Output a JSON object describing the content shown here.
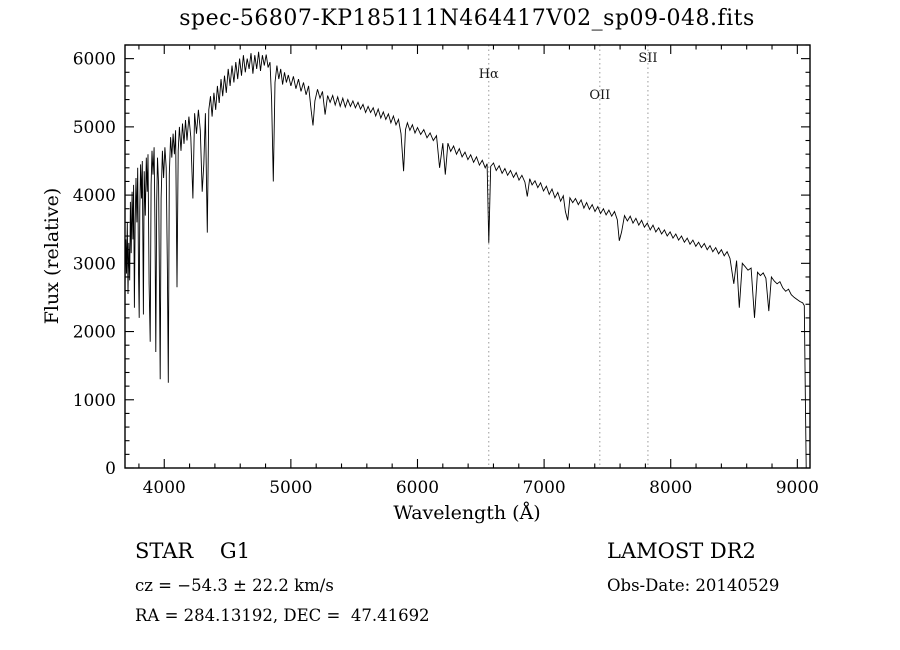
{
  "title": "spec-56807-KP185111N464417V02_sp09-048.fits",
  "annotations": {
    "object_class": "STAR    G1",
    "survey": "LAMOST DR2",
    "cz": "cz = −54.3 ± 22.2 km/s",
    "obs_date": "Obs-Date: 20140529",
    "coords": "RA = 284.13192, DEC =  47.41692"
  },
  "chart_data": {
    "type": "line",
    "title": "spec-56807-KP185111N464417V02_sp09-048.fits",
    "xlabel": "Wavelength (Å)",
    "ylabel": "Flux (relative)",
    "xlim": [
      3690,
      9100
    ],
    "ylim": [
      0,
      6200
    ],
    "xticks": [
      4000,
      5000,
      6000,
      7000,
      8000,
      9000
    ],
    "yticks": [
      0,
      1000,
      2000,
      3000,
      4000,
      5000,
      6000
    ],
    "x_minor_step": 200,
    "y_minor_step": 200,
    "grid": false,
    "legend": "none",
    "line_color": "#000000",
    "marker_line_color": "#9a9a9a",
    "marker_lines": [
      {
        "label": "Hα",
        "wavelength": 6563,
        "label_y": 78
      },
      {
        "label": "OII",
        "wavelength": 7440,
        "label_y": 99
      },
      {
        "label": "SII",
        "wavelength": 7820,
        "label_y": 62
      }
    ],
    "series": [
      {
        "name": "flux",
        "points": [
          [
            3690,
            2650
          ],
          [
            3696,
            3350
          ],
          [
            3702,
            2850
          ],
          [
            3708,
            3600
          ],
          [
            3714,
            2550
          ],
          [
            3720,
            3300
          ],
          [
            3727,
            2750
          ],
          [
            3733,
            3900
          ],
          [
            3739,
            3150
          ],
          [
            3746,
            4050
          ],
          [
            3752,
            3350
          ],
          [
            3758,
            4150
          ],
          [
            3764,
            2350
          ],
          [
            3770,
            3550
          ],
          [
            3777,
            4250
          ],
          [
            3784,
            3600
          ],
          [
            3790,
            4400
          ],
          [
            3797,
            2900
          ],
          [
            3802,
            2200
          ],
          [
            3807,
            3800
          ],
          [
            3813,
            4450
          ],
          [
            3820,
            3950
          ],
          [
            3827,
            4500
          ],
          [
            3835,
            2250
          ],
          [
            3842,
            4350
          ],
          [
            3850,
            3700
          ],
          [
            3858,
            4550
          ],
          [
            3865,
            4050
          ],
          [
            3872,
            4600
          ],
          [
            3880,
            2700
          ],
          [
            3889,
            1850
          ],
          [
            3896,
            4150
          ],
          [
            3903,
            4650
          ],
          [
            3911,
            4300
          ],
          [
            3920,
            4700
          ],
          [
            3927,
            3500
          ],
          [
            3933,
            1700
          ],
          [
            3940,
            3900
          ],
          [
            3947,
            4550
          ],
          [
            3955,
            4150
          ],
          [
            3962,
            2800
          ],
          [
            3968,
            1300
          ],
          [
            3975,
            3950
          ],
          [
            3985,
            4650
          ],
          [
            3995,
            4250
          ],
          [
            4005,
            4700
          ],
          [
            4015,
            4400
          ],
          [
            4025,
            2900
          ],
          [
            4032,
            1250
          ],
          [
            4040,
            4300
          ],
          [
            4050,
            4850
          ],
          [
            4060,
            4550
          ],
          [
            4070,
            4900
          ],
          [
            4080,
            4600
          ],
          [
            4090,
            4950
          ],
          [
            4101,
            2650
          ],
          [
            4110,
            4650
          ],
          [
            4120,
            5000
          ],
          [
            4132,
            4650
          ],
          [
            4144,
            5050
          ],
          [
            4156,
            4750
          ],
          [
            4168,
            5100
          ],
          [
            4180,
            4800
          ],
          [
            4195,
            5150
          ],
          [
            4210,
            4850
          ],
          [
            4226,
            3950
          ],
          [
            4240,
            5200
          ],
          [
            4255,
            4900
          ],
          [
            4270,
            5250
          ],
          [
            4285,
            4950
          ],
          [
            4300,
            4050
          ],
          [
            4312,
            4450
          ],
          [
            4325,
            5200
          ],
          [
            4340,
            3450
          ],
          [
            4352,
            5250
          ],
          [
            4365,
            5450
          ],
          [
            4378,
            5150
          ],
          [
            4392,
            5500
          ],
          [
            4406,
            5250
          ],
          [
            4420,
            5600
          ],
          [
            4434,
            5350
          ],
          [
            4448,
            5700
          ],
          [
            4462,
            5450
          ],
          [
            4476,
            5750
          ],
          [
            4490,
            5500
          ],
          [
            4505,
            5850
          ],
          [
            4520,
            5600
          ],
          [
            4535,
            5900
          ],
          [
            4550,
            5650
          ],
          [
            4565,
            5950
          ],
          [
            4580,
            5700
          ],
          [
            4595,
            6000
          ],
          [
            4610,
            5750
          ],
          [
            4625,
            6050
          ],
          [
            4640,
            5800
          ],
          [
            4655,
            6000
          ],
          [
            4670,
            5850
          ],
          [
            4685,
            6080
          ],
          [
            4700,
            5780
          ],
          [
            4715,
            6050
          ],
          [
            4730,
            5850
          ],
          [
            4745,
            6100
          ],
          [
            4760,
            5820
          ],
          [
            4775,
            6050
          ],
          [
            4790,
            5900
          ],
          [
            4805,
            6060
          ],
          [
            4820,
            5870
          ],
          [
            4835,
            5950
          ],
          [
            4848,
            5400
          ],
          [
            4861,
            4200
          ],
          [
            4875,
            5650
          ],
          [
            4890,
            5900
          ],
          [
            4905,
            5700
          ],
          [
            4920,
            5850
          ],
          [
            4935,
            5620
          ],
          [
            4950,
            5800
          ],
          [
            4965,
            5650
          ],
          [
            4980,
            5760
          ],
          [
            5000,
            5600
          ],
          [
            5020,
            5740
          ],
          [
            5040,
            5560
          ],
          [
            5060,
            5700
          ],
          [
            5080,
            5520
          ],
          [
            5100,
            5650
          ],
          [
            5120,
            5470
          ],
          [
            5140,
            5600
          ],
          [
            5160,
            5250
          ],
          [
            5175,
            5020
          ],
          [
            5190,
            5380
          ],
          [
            5210,
            5550
          ],
          [
            5230,
            5420
          ],
          [
            5250,
            5520
          ],
          [
            5270,
            5180
          ],
          [
            5290,
            5460
          ],
          [
            5310,
            5360
          ],
          [
            5330,
            5460
          ],
          [
            5350,
            5320
          ],
          [
            5370,
            5440
          ],
          [
            5390,
            5300
          ],
          [
            5410,
            5420
          ],
          [
            5430,
            5290
          ],
          [
            5450,
            5400
          ],
          [
            5470,
            5300
          ],
          [
            5490,
            5380
          ],
          [
            5510,
            5280
          ],
          [
            5530,
            5360
          ],
          [
            5550,
            5260
          ],
          [
            5570,
            5330
          ],
          [
            5590,
            5210
          ],
          [
            5610,
            5300
          ],
          [
            5630,
            5210
          ],
          [
            5650,
            5280
          ],
          [
            5670,
            5160
          ],
          [
            5690,
            5260
          ],
          [
            5710,
            5130
          ],
          [
            5730,
            5220
          ],
          [
            5750,
            5110
          ],
          [
            5770,
            5190
          ],
          [
            5790,
            5060
          ],
          [
            5810,
            5160
          ],
          [
            5830,
            5030
          ],
          [
            5850,
            5110
          ],
          [
            5870,
            4900
          ],
          [
            5890,
            4350
          ],
          [
            5905,
            4960
          ],
          [
            5920,
            5060
          ],
          [
            5940,
            4950
          ],
          [
            5960,
            5030
          ],
          [
            5980,
            4910
          ],
          [
            6000,
            4990
          ],
          [
            6025,
            4890
          ],
          [
            6050,
            4960
          ],
          [
            6075,
            4840
          ],
          [
            6100,
            4910
          ],
          [
            6125,
            4800
          ],
          [
            6150,
            4870
          ],
          [
            6175,
            4400
          ],
          [
            6200,
            4760
          ],
          [
            6220,
            4300
          ],
          [
            6240,
            4760
          ],
          [
            6262,
            4640
          ],
          [
            6285,
            4720
          ],
          [
            6308,
            4600
          ],
          [
            6330,
            4680
          ],
          [
            6352,
            4560
          ],
          [
            6375,
            4630
          ],
          [
            6398,
            4520
          ],
          [
            6420,
            4590
          ],
          [
            6443,
            4480
          ],
          [
            6466,
            4560
          ],
          [
            6489,
            4440
          ],
          [
            6512,
            4510
          ],
          [
            6535,
            4400
          ],
          [
            6550,
            4460
          ],
          [
            6563,
            3300
          ],
          [
            6578,
            4420
          ],
          [
            6600,
            4470
          ],
          [
            6622,
            4360
          ],
          [
            6645,
            4430
          ],
          [
            6668,
            4320
          ],
          [
            6690,
            4390
          ],
          [
            6712,
            4290
          ],
          [
            6735,
            4360
          ],
          [
            6758,
            4260
          ],
          [
            6780,
            4330
          ],
          [
            6802,
            4220
          ],
          [
            6825,
            4290
          ],
          [
            6848,
            4190
          ],
          [
            6867,
            3980
          ],
          [
            6886,
            4240
          ],
          [
            6905,
            4150
          ],
          [
            6928,
            4210
          ],
          [
            6950,
            4110
          ],
          [
            6972,
            4180
          ],
          [
            6995,
            4060
          ],
          [
            7018,
            4130
          ],
          [
            7040,
            4010
          ],
          [
            7062,
            4090
          ],
          [
            7085,
            3960
          ],
          [
            7108,
            4040
          ],
          [
            7130,
            3910
          ],
          [
            7152,
            3990
          ],
          [
            7168,
            3760
          ],
          [
            7186,
            3630
          ],
          [
            7204,
            3960
          ],
          [
            7226,
            3890
          ],
          [
            7248,
            3950
          ],
          [
            7270,
            3860
          ],
          [
            7292,
            3930
          ],
          [
            7314,
            3810
          ],
          [
            7336,
            3890
          ],
          [
            7358,
            3790
          ],
          [
            7380,
            3860
          ],
          [
            7402,
            3760
          ],
          [
            7424,
            3830
          ],
          [
            7446,
            3730
          ],
          [
            7468,
            3800
          ],
          [
            7490,
            3710
          ],
          [
            7512,
            3780
          ],
          [
            7534,
            3690
          ],
          [
            7556,
            3760
          ],
          [
            7578,
            3640
          ],
          [
            7594,
            3330
          ],
          [
            7612,
            3460
          ],
          [
            7635,
            3700
          ],
          [
            7658,
            3620
          ],
          [
            7680,
            3690
          ],
          [
            7702,
            3590
          ],
          [
            7725,
            3660
          ],
          [
            7748,
            3560
          ],
          [
            7770,
            3630
          ],
          [
            7792,
            3530
          ],
          [
            7815,
            3590
          ],
          [
            7838,
            3490
          ],
          [
            7860,
            3560
          ],
          [
            7882,
            3460
          ],
          [
            7905,
            3520
          ],
          [
            7928,
            3430
          ],
          [
            7950,
            3490
          ],
          [
            7972,
            3400
          ],
          [
            7995,
            3460
          ],
          [
            8018,
            3370
          ],
          [
            8040,
            3430
          ],
          [
            8062,
            3340
          ],
          [
            8085,
            3400
          ],
          [
            8108,
            3310
          ],
          [
            8130,
            3370
          ],
          [
            8152,
            3280
          ],
          [
            8175,
            3340
          ],
          [
            8198,
            3250
          ],
          [
            8220,
            3310
          ],
          [
            8242,
            3230
          ],
          [
            8265,
            3290
          ],
          [
            8288,
            3200
          ],
          [
            8310,
            3260
          ],
          [
            8332,
            3170
          ],
          [
            8355,
            3230
          ],
          [
            8378,
            3140
          ],
          [
            8400,
            3200
          ],
          [
            8422,
            3110
          ],
          [
            8445,
            3170
          ],
          [
            8468,
            3070
          ],
          [
            8498,
            2700
          ],
          [
            8520,
            3040
          ],
          [
            8542,
            2350
          ],
          [
            8565,
            3000
          ],
          [
            8588,
            2950
          ],
          [
            8610,
            2900
          ],
          [
            8635,
            2930
          ],
          [
            8662,
            2200
          ],
          [
            8685,
            2870
          ],
          [
            8708,
            2820
          ],
          [
            8730,
            2860
          ],
          [
            8752,
            2780
          ],
          [
            8775,
            2300
          ],
          [
            8795,
            2800
          ],
          [
            8818,
            2740
          ],
          [
            8840,
            2700
          ],
          [
            8862,
            2730
          ],
          [
            8885,
            2640
          ],
          [
            8908,
            2590
          ],
          [
            8930,
            2620
          ],
          [
            8952,
            2540
          ],
          [
            8975,
            2500
          ],
          [
            8998,
            2470
          ],
          [
            9020,
            2440
          ],
          [
            9042,
            2420
          ],
          [
            9055,
            2380
          ],
          [
            9063,
            1100
          ],
          [
            9070,
            0
          ]
        ]
      }
    ]
  }
}
